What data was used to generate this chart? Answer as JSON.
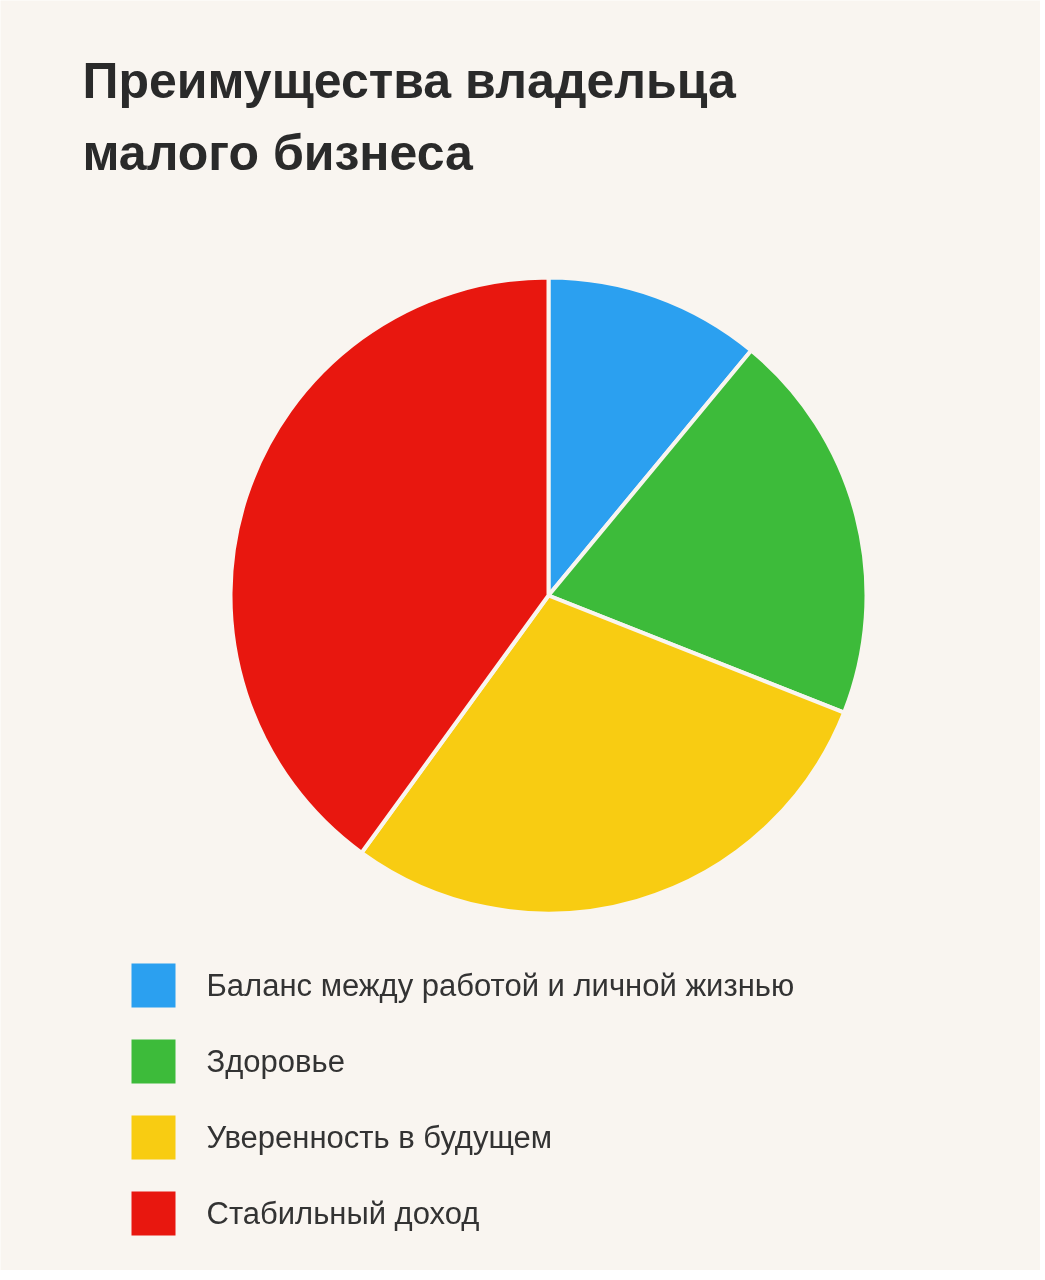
{
  "chart_data": {
    "type": "pie",
    "title": "Преимущества владельца малого бизнеса",
    "categories": [
      "Баланс между работой и личной жизнью",
      "Здоровье",
      "Уверенность в будущем",
      "Стабильный доход"
    ],
    "values": [
      11,
      20,
      29,
      40
    ],
    "colors": [
      "#2ba0f0",
      "#3dbb3a",
      "#f8cc12",
      "#e8170f"
    ],
    "legend": "bottom"
  }
}
